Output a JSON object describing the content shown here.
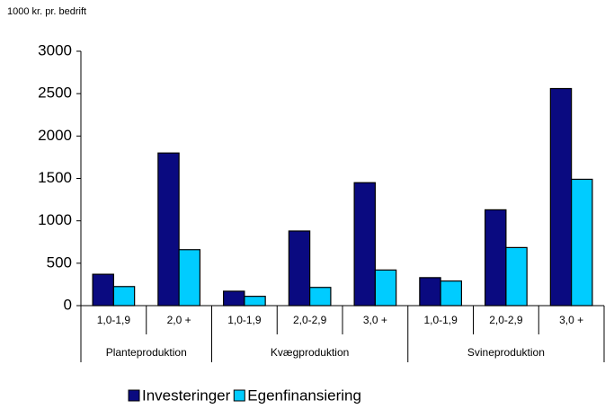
{
  "chart_data": {
    "type": "bar",
    "y_axis_label": "1000 kr. pr. bedrift",
    "groups": [
      {
        "name": "Planteproduktion",
        "categories": [
          "1,0-1,9",
          "2,0 +"
        ]
      },
      {
        "name": "Kvægproduktion",
        "categories": [
          "1,0-1,9",
          "2,0-2,9",
          "3,0 +"
        ]
      },
      {
        "name": "Svineproduktion",
        "categories": [
          "1,0-1,9",
          "2,0-2,9",
          "3,0 +"
        ]
      }
    ],
    "series": [
      {
        "name": "Investeringer",
        "color": "#0a0a80",
        "values": [
          370,
          1800,
          170,
          880,
          1450,
          330,
          1130,
          2560
        ]
      },
      {
        "name": "Egenfinansiering",
        "color": "#00ccff",
        "values": [
          225,
          660,
          110,
          215,
          420,
          290,
          685,
          1490
        ]
      }
    ],
    "ylim": [
      0,
      3000
    ],
    "yticks": [
      0,
      500,
      1000,
      1500,
      2000,
      2500,
      3000
    ],
    "legend": "bottom"
  }
}
